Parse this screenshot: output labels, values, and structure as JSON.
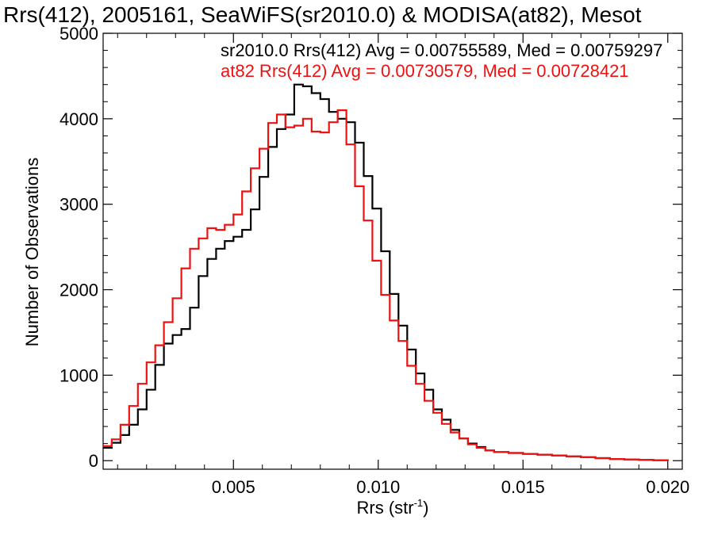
{
  "chart_data": {
    "type": "line",
    "title": "Rrs(412), 2005161, SeaWiFS(sr2010.0) & MODISA(at82), Mesot",
    "xlabel": "Rrs (str",
    "xlabel_sup": "-1",
    "xlabel_suffix": ")",
    "ylabel": "Number of Observations",
    "xlim": [
      0.0005,
      0.0205
    ],
    "ylim": [
      -100,
      5000
    ],
    "xticks": [
      0.005,
      0.01,
      0.015,
      0.02
    ],
    "xtick_labels": [
      "0.005",
      "0.010",
      "0.015",
      "0.020"
    ],
    "yticks": [
      0,
      1000,
      2000,
      3000,
      4000,
      5000
    ],
    "ytick_labels": [
      "0",
      "1000",
      "2000",
      "3000",
      "4000",
      "5000"
    ],
    "grid": false,
    "legend_position": "top-right",
    "series": [
      {
        "name": "sr2010.0 Rrs(412) Avg = 0.00755589, Med = 0.00759297",
        "color": "#000000",
        "points": [
          [
            0.0005,
            150
          ],
          [
            0.0008,
            210
          ],
          [
            0.0011,
            300
          ],
          [
            0.0014,
            420
          ],
          [
            0.0017,
            600
          ],
          [
            0.002,
            830
          ],
          [
            0.0023,
            1120
          ],
          [
            0.0026,
            1370
          ],
          [
            0.0029,
            1470
          ],
          [
            0.0032,
            1540
          ],
          [
            0.0035,
            1790
          ],
          [
            0.0038,
            2160
          ],
          [
            0.0041,
            2360
          ],
          [
            0.0044,
            2480
          ],
          [
            0.0047,
            2570
          ],
          [
            0.005,
            2620
          ],
          [
            0.0053,
            2700
          ],
          [
            0.0056,
            2940
          ],
          [
            0.0059,
            3320
          ],
          [
            0.0062,
            3670
          ],
          [
            0.0065,
            3880
          ],
          [
            0.0068,
            4050
          ],
          [
            0.0071,
            4400
          ],
          [
            0.0074,
            4380
          ],
          [
            0.0077,
            4300
          ],
          [
            0.008,
            4230
          ],
          [
            0.0083,
            4080
          ],
          [
            0.0086,
            4000
          ],
          [
            0.0089,
            3960
          ],
          [
            0.0092,
            3720
          ],
          [
            0.0095,
            3330
          ],
          [
            0.0098,
            2950
          ],
          [
            0.0101,
            2450
          ],
          [
            0.0104,
            1950
          ],
          [
            0.0107,
            1580
          ],
          [
            0.011,
            1300
          ],
          [
            0.0113,
            1020
          ],
          [
            0.0116,
            830
          ],
          [
            0.0119,
            600
          ],
          [
            0.0122,
            480
          ],
          [
            0.0125,
            360
          ],
          [
            0.0128,
            260
          ],
          [
            0.0131,
            200
          ],
          [
            0.0134,
            160
          ],
          [
            0.0137,
            120
          ],
          [
            0.014,
            100
          ],
          [
            0.0145,
            90
          ],
          [
            0.015,
            80
          ],
          [
            0.0155,
            70
          ],
          [
            0.016,
            60
          ],
          [
            0.0165,
            50
          ],
          [
            0.017,
            40
          ],
          [
            0.0175,
            30
          ],
          [
            0.018,
            20
          ],
          [
            0.0185,
            15
          ],
          [
            0.019,
            10
          ],
          [
            0.0195,
            5
          ],
          [
            0.02,
            0
          ]
        ]
      },
      {
        "name": "at82 Rrs(412) Avg = 0.00730579, Med = 0.00728421",
        "color": "#ee1111",
        "points": [
          [
            0.0005,
            170
          ],
          [
            0.0008,
            250
          ],
          [
            0.0011,
            420
          ],
          [
            0.0014,
            640
          ],
          [
            0.0017,
            900
          ],
          [
            0.002,
            1150
          ],
          [
            0.0023,
            1350
          ],
          [
            0.0026,
            1620
          ],
          [
            0.0029,
            1900
          ],
          [
            0.0032,
            2250
          ],
          [
            0.0035,
            2480
          ],
          [
            0.0038,
            2600
          ],
          [
            0.0041,
            2720
          ],
          [
            0.0044,
            2700
          ],
          [
            0.0047,
            2760
          ],
          [
            0.005,
            2880
          ],
          [
            0.0053,
            3150
          ],
          [
            0.0056,
            3420
          ],
          [
            0.0059,
            3650
          ],
          [
            0.0062,
            3950
          ],
          [
            0.0065,
            4050
          ],
          [
            0.0068,
            3900
          ],
          [
            0.0071,
            3920
          ],
          [
            0.0074,
            4000
          ],
          [
            0.0077,
            3850
          ],
          [
            0.008,
            3840
          ],
          [
            0.0083,
            3960
          ],
          [
            0.0086,
            4100
          ],
          [
            0.0089,
            3700
          ],
          [
            0.0092,
            3210
          ],
          [
            0.0095,
            2810
          ],
          [
            0.0098,
            2340
          ],
          [
            0.0101,
            1940
          ],
          [
            0.0104,
            1640
          ],
          [
            0.0107,
            1400
          ],
          [
            0.011,
            1110
          ],
          [
            0.0113,
            900
          ],
          [
            0.0116,
            700
          ],
          [
            0.0119,
            560
          ],
          [
            0.0122,
            430
          ],
          [
            0.0125,
            330
          ],
          [
            0.0128,
            260
          ],
          [
            0.0131,
            190
          ],
          [
            0.0134,
            150
          ],
          [
            0.0137,
            120
          ],
          [
            0.014,
            100
          ],
          [
            0.0145,
            90
          ],
          [
            0.015,
            80
          ],
          [
            0.0155,
            70
          ],
          [
            0.016,
            60
          ],
          [
            0.0165,
            50
          ],
          [
            0.017,
            40
          ],
          [
            0.0175,
            30
          ],
          [
            0.018,
            20
          ],
          [
            0.0185,
            15
          ],
          [
            0.019,
            10
          ],
          [
            0.0195,
            5
          ],
          [
            0.02,
            0
          ]
        ]
      }
    ]
  }
}
